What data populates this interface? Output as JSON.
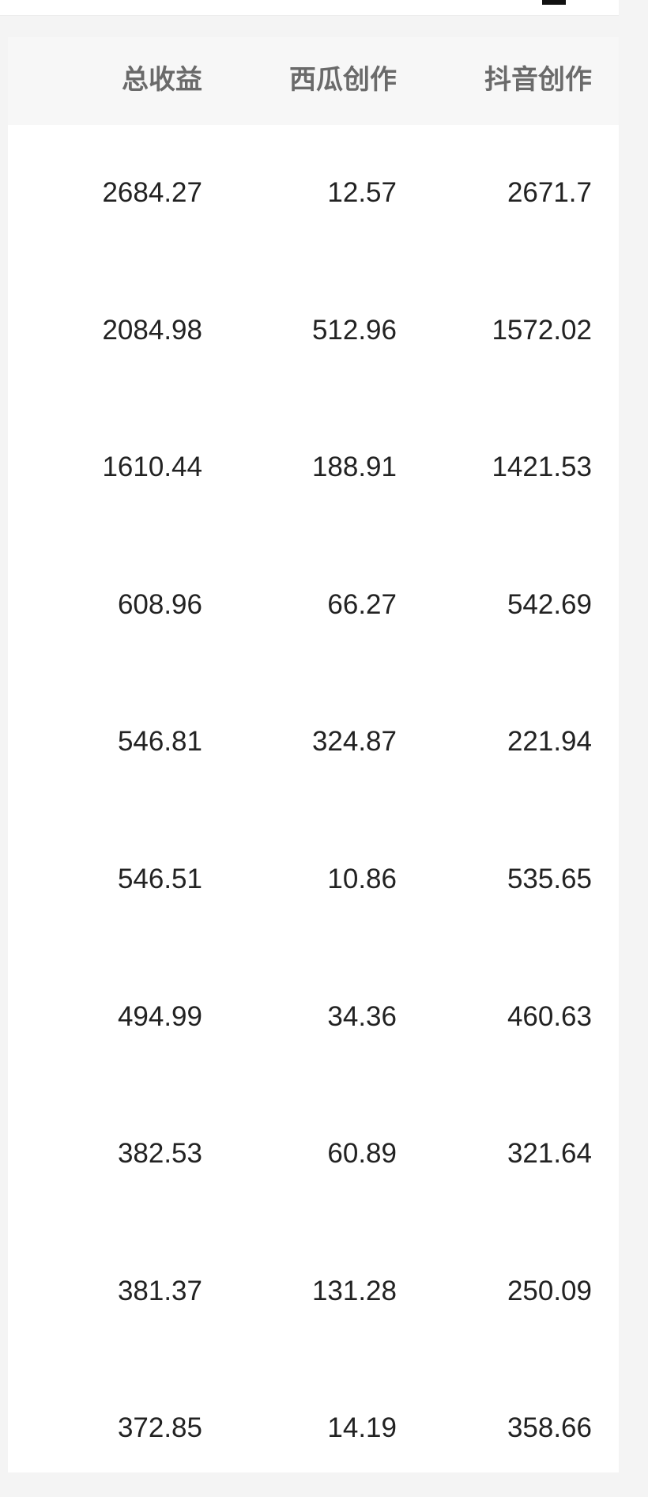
{
  "table": {
    "columns": [
      "总收益",
      "西瓜创作",
      "抖音创作"
    ],
    "rows": [
      [
        "2684.27",
        "12.57",
        "2671.7"
      ],
      [
        "2084.98",
        "512.96",
        "1572.02"
      ],
      [
        "1610.44",
        "188.91",
        "1421.53"
      ],
      [
        "608.96",
        "66.27",
        "542.69"
      ],
      [
        "546.81",
        "324.87",
        "221.94"
      ],
      [
        "546.51",
        "10.86",
        "535.65"
      ],
      [
        "494.99",
        "34.36",
        "460.63"
      ],
      [
        "382.53",
        "60.89",
        "321.64"
      ],
      [
        "381.37",
        "131.28",
        "250.09"
      ],
      [
        "372.85",
        "14.19",
        "358.66"
      ]
    ]
  }
}
